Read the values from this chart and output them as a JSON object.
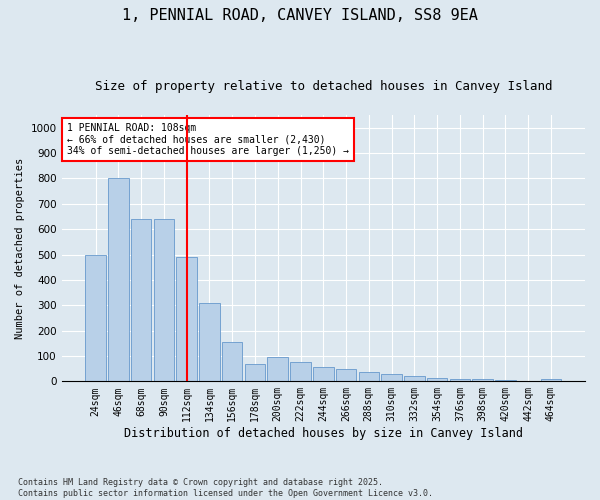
{
  "title1": "1, PENNIAL ROAD, CANVEY ISLAND, SS8 9EA",
  "title2": "Size of property relative to detached houses in Canvey Island",
  "xlabel": "Distribution of detached houses by size in Canvey Island",
  "ylabel": "Number of detached properties",
  "categories": [
    "24sqm",
    "46sqm",
    "68sqm",
    "90sqm",
    "112sqm",
    "134sqm",
    "156sqm",
    "178sqm",
    "200sqm",
    "222sqm",
    "244sqm",
    "266sqm",
    "288sqm",
    "310sqm",
    "332sqm",
    "354sqm",
    "376sqm",
    "398sqm",
    "420sqm",
    "442sqm",
    "464sqm"
  ],
  "values": [
    500,
    800,
    640,
    640,
    490,
    310,
    155,
    70,
    95,
    75,
    55,
    50,
    35,
    30,
    20,
    15,
    10,
    8,
    5,
    3,
    8
  ],
  "bar_color": "#b8d0e8",
  "bar_edge_color": "#6699cc",
  "vline_color": "red",
  "vline_pos": 4.5,
  "annotation_text": "1 PENNIAL ROAD: 108sqm\n← 66% of detached houses are smaller (2,430)\n34% of semi-detached houses are larger (1,250) →",
  "annotation_box_color": "white",
  "annotation_box_edge": "red",
  "ylim": [
    0,
    1050
  ],
  "yticks": [
    0,
    100,
    200,
    300,
    400,
    500,
    600,
    700,
    800,
    900,
    1000
  ],
  "footer1": "Contains HM Land Registry data © Crown copyright and database right 2025.",
  "footer2": "Contains public sector information licensed under the Open Government Licence v3.0.",
  "bg_color": "#dde8f0",
  "plot_bg_color": "#dde8f0",
  "title1_fontsize": 11,
  "title2_fontsize": 9,
  "tick_fontsize": 7,
  "label_fontsize": 8.5,
  "ylabel_fontsize": 7.5,
  "annot_fontsize": 7,
  "footer_fontsize": 6
}
